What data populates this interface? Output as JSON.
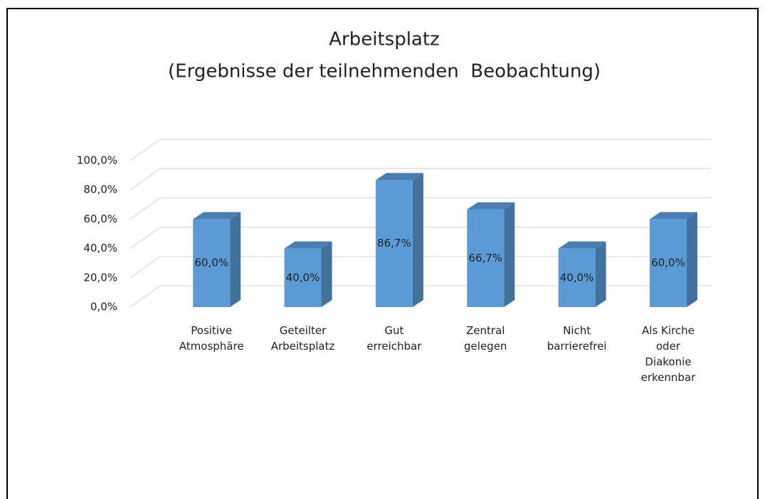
{
  "chart_data": {
    "type": "bar3d",
    "title": "Arbeitsplatz",
    "subtitle": "(Ergebnisse der teilnehmenden  Beobachtung)",
    "categories": [
      "Positive\nAtmosphäre",
      "Geteilter\nArbeitsplatz",
      "Gut\nerreichbar",
      "Zentral\ngelegen",
      "Nicht\nbarrierefrei",
      "Als Kirche\noder\nDiakonie\nerkennbar"
    ],
    "values": [
      60,
      40,
      86.7,
      66.7,
      40,
      60
    ],
    "value_labels": [
      "60,0%",
      "40,0%",
      "86,7%",
      "66,7%",
      "40,0%",
      "60,0%"
    ],
    "color": "#5b9bd5",
    "ylim": [
      0,
      100
    ],
    "yticks": [
      {
        "value": 0,
        "label": "0,0%"
      },
      {
        "value": 20,
        "label": "20,0%"
      },
      {
        "value": 40,
        "label": "40,0%"
      },
      {
        "value": 60,
        "label": "60,0%"
      },
      {
        "value": 80,
        "label": "80,0%"
      },
      {
        "value": 100,
        "label": "100,0%"
      }
    ],
    "grid": true
  }
}
